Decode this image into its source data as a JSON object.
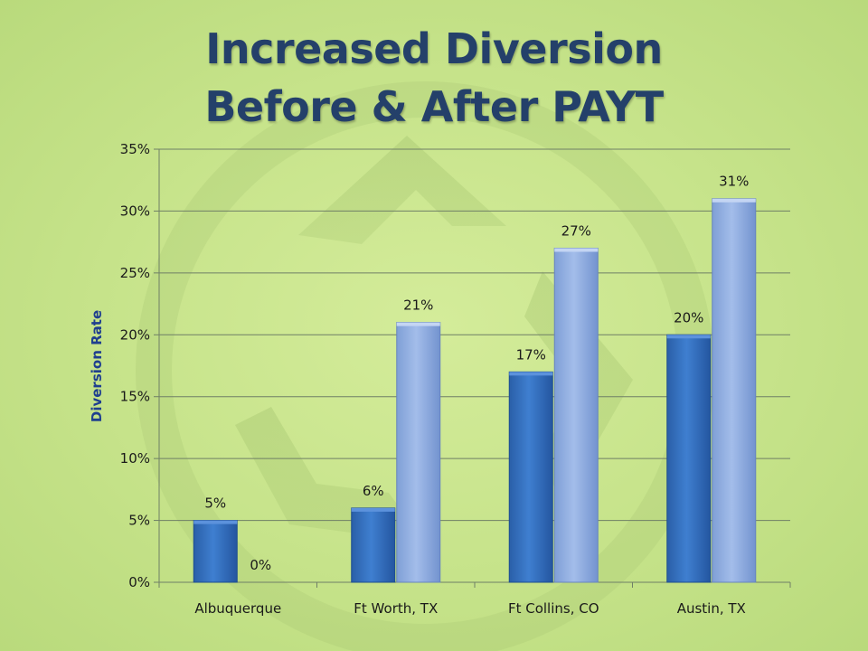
{
  "title_line1": "Increased Diversion",
  "title_line2": "Before & After PAYT",
  "chart_data": {
    "type": "bar",
    "categories": [
      "Albuquerque",
      "Ft Worth, TX",
      "Ft Collins, CO",
      "Austin, TX"
    ],
    "series": [
      {
        "values": [
          5,
          6,
          17,
          20
        ],
        "labels": [
          "5%",
          "6%",
          "17%",
          "20%"
        ],
        "color": "#2f6dc0"
      },
      {
        "values": [
          0,
          21,
          27,
          31
        ],
        "labels": [
          "0%",
          "21%",
          "27%",
          "31%"
        ],
        "color": "#8aaae0"
      }
    ],
    "ylabel": "Diversion Rate",
    "xlabel": "",
    "ylim": [
      0,
      35
    ],
    "yticks": [
      0,
      5,
      10,
      15,
      20,
      25,
      30,
      35
    ],
    "ytick_labels": [
      "0%",
      "5%",
      "10%",
      "15%",
      "20%",
      "25%",
      "30%",
      "35%"
    ],
    "grid": true,
    "legend": "none"
  }
}
